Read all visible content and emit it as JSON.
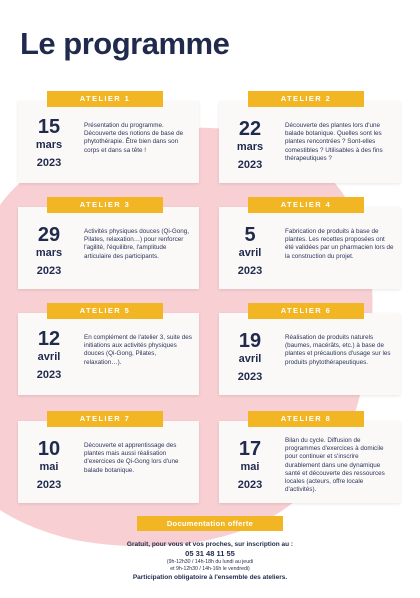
{
  "page": {
    "title": "Le programme",
    "accent_color": "#f2b624",
    "blob_color": "#f5bfc4",
    "text_color": "#1f2a4d"
  },
  "ateliers": [
    {
      "tag": "ATELIER 1",
      "day": "15",
      "month": "mars",
      "year": "2023",
      "desc": "Présentation du programme. Découverte des notions de base de phytothérapie. Être bien dans son corps et dans sa tête !"
    },
    {
      "tag": "ATELIER 2",
      "day": "22",
      "month": "mars",
      "year": "2023",
      "desc": "Découverte des plantes lors d'une balade botanique. Quelles sont les plantes rencontrées ? Sont-elles comestibles ? Utilisables à des fins thérapeutiques ?"
    },
    {
      "tag": "ATELIER 3",
      "day": "29",
      "month": "mars",
      "year": "2023",
      "desc": "Activités physiques douces (Qi-Gong, Pilates, relaxation…) pour renforcer l'agilité, l'équilibre, l'amplitude articulaire des participants."
    },
    {
      "tag": "ATELIER 4",
      "day": "5",
      "month": "avril",
      "year": "2023",
      "desc": "Fabrication de produits à base de plantes. Les recettes proposées ont été validées par un pharmacien lors de la construction du projet."
    },
    {
      "tag": "ATELIER 5",
      "day": "12",
      "month": "avril",
      "year": "2023",
      "desc": "En complément de l'atelier 3, suite des initiations aux activités physiques douces (Qi-Gong, Pilates, relaxation…)."
    },
    {
      "tag": "ATELIER 6",
      "day": "19",
      "month": "avril",
      "year": "2023",
      "desc": "Réalisation de produits naturels (baumes, macérâts, etc.) à base de plantes et précautions d'usage sur les produits phytothérapeutiques."
    },
    {
      "tag": "ATELIER 7",
      "day": "10",
      "month": "mai",
      "year": "2023",
      "desc": "Découverte et apprentissage des plantes mais aussi réalisation d'exercices de Qi-Gong lors d'une balade botanique."
    },
    {
      "tag": "ATELIER 8",
      "day": "17",
      "month": "mai",
      "year": "2023",
      "desc": "Bilan du cycle. Diffusion de programmes d'exercices à domicile pour continuer et s'inscrire durablement dans une dynamique santé et découverte des ressources locales (acteurs, offre locale d'activités)."
    }
  ],
  "footer": {
    "badge": "Documentation offerte",
    "line1": "Gratuit, pour vous et vos proches, sur inscription au :",
    "phone": "05 31 48 11 55",
    "hours1": "(9h-12h30 / 14h-18h du lundi au jeudi",
    "hours2": "et 9h-12h30 / 14h-16h le vendredi)",
    "line5": "Participation obligatoire à l'ensemble des ateliers."
  }
}
